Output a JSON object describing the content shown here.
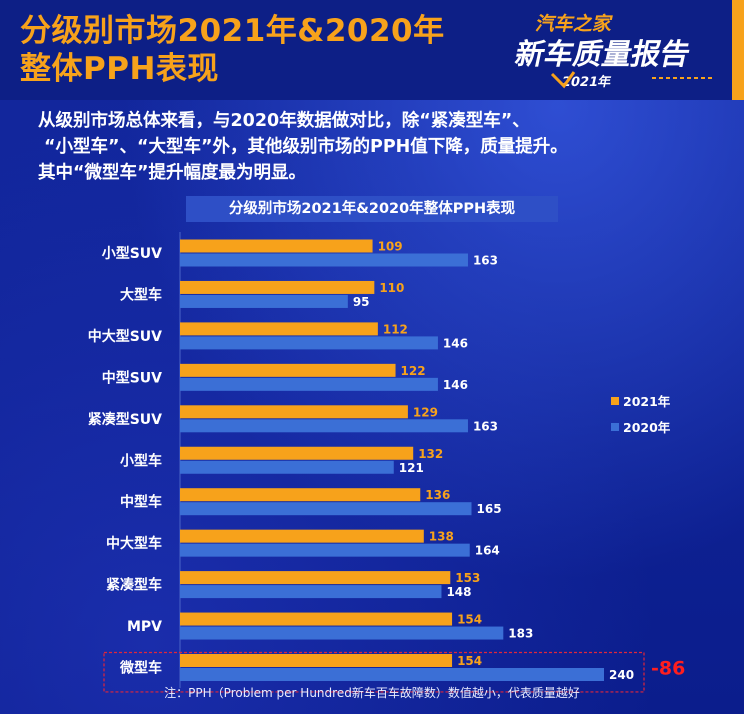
{
  "header": {
    "title_line1": "分级别市场2021年&2020年",
    "title_line2": "整体PPH表现",
    "logo": {
      "brand": "汽车之家",
      "report": "新车质量报告",
      "year": "2021年"
    }
  },
  "description": {
    "line1": "从级别市场总体来看，与2020年数据做对比，除“紧凑型车”、",
    "line2": "“小型车”、“大型车”外，其他级别市场的PPH值下降，质量提升。",
    "line3": "其中“微型车”提升幅度最为明显。"
  },
  "chart_data": {
    "type": "bar",
    "orientation": "horizontal",
    "title": "分级别市场2021年&2020年整体PPH表现",
    "categories": [
      "小型SUV",
      "大型车",
      "中大型SUV",
      "中型SUV",
      "紧凑型SUV",
      "小型车",
      "中型车",
      "中大型车",
      "紧凑型车",
      "MPV",
      "微型车"
    ],
    "series": [
      {
        "name": "2021年",
        "color": "#f7a21b",
        "values": [
          109,
          110,
          112,
          122,
          129,
          132,
          136,
          138,
          153,
          154,
          154
        ]
      },
      {
        "name": "2020年",
        "color": "#3b6fd6",
        "values": [
          163,
          95,
          146,
          146,
          163,
          121,
          165,
          164,
          148,
          183,
          240
        ]
      }
    ],
    "xlim": [
      0,
      240
    ],
    "grid": false,
    "legend_position": "right",
    "annotation": {
      "category": "微型车",
      "text": "-86"
    }
  },
  "footer": {
    "note": "注：PPH（Problem per Hundred新车百车故障数）数值越小，代表质量越好"
  }
}
